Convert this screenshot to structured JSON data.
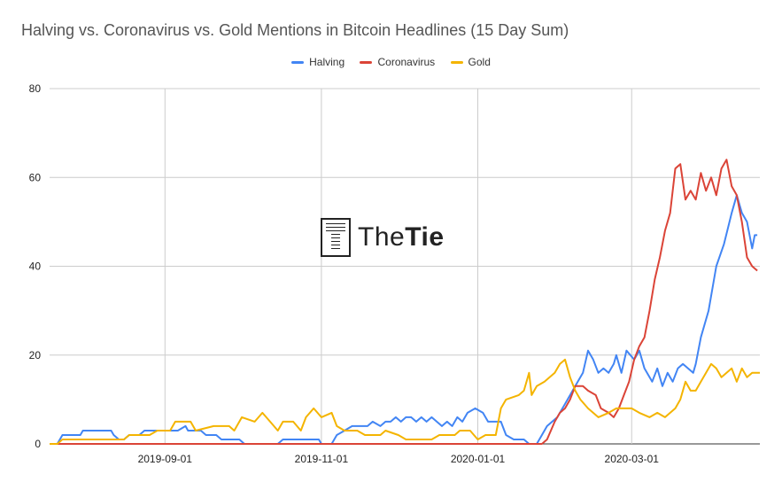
{
  "chart_data": {
    "type": "line",
    "title": "Halving vs. Coronavirus vs. Gold Mentions in Bitcoin Headlines (15 Day Sum)",
    "legend_position": "top-center",
    "grid": true,
    "ylim": [
      0,
      80
    ],
    "yticks": [
      0,
      20,
      40,
      60,
      80
    ],
    "xlim": [
      "2019-07-18",
      "2020-04-20"
    ],
    "xticks": [
      "2019-09-01",
      "2019-11-01",
      "2020-01-01",
      "2020-03-01"
    ],
    "series": [
      {
        "name": "Halving",
        "color": "#4285f4",
        "points": [
          [
            "2019-07-18",
            0
          ],
          [
            "2019-07-21",
            0
          ],
          [
            "2019-07-23",
            2
          ],
          [
            "2019-07-30",
            2
          ],
          [
            "2019-07-31",
            3
          ],
          [
            "2019-08-11",
            3
          ],
          [
            "2019-08-12",
            2
          ],
          [
            "2019-08-14",
            1
          ],
          [
            "2019-08-16",
            1
          ],
          [
            "2019-08-18",
            2
          ],
          [
            "2019-08-22",
            2
          ],
          [
            "2019-08-24",
            3
          ],
          [
            "2019-09-03",
            3
          ],
          [
            "2019-09-06",
            3
          ],
          [
            "2019-09-09",
            4
          ],
          [
            "2019-09-10",
            3
          ],
          [
            "2019-09-15",
            3
          ],
          [
            "2019-09-17",
            2
          ],
          [
            "2019-09-21",
            2
          ],
          [
            "2019-09-23",
            1
          ],
          [
            "2019-09-30",
            1
          ],
          [
            "2019-10-02",
            0
          ],
          [
            "2019-10-15",
            0
          ],
          [
            "2019-10-17",
            1
          ],
          [
            "2019-10-31",
            1
          ],
          [
            "2019-11-01",
            0
          ],
          [
            "2019-11-05",
            0
          ],
          [
            "2019-11-07",
            2
          ],
          [
            "2019-11-10",
            3
          ],
          [
            "2019-11-13",
            4
          ],
          [
            "2019-11-19",
            4
          ],
          [
            "2019-11-21",
            5
          ],
          [
            "2019-11-24",
            4
          ],
          [
            "2019-11-26",
            5
          ],
          [
            "2019-11-28",
            5
          ],
          [
            "2019-11-30",
            6
          ],
          [
            "2019-12-02",
            5
          ],
          [
            "2019-12-04",
            6
          ],
          [
            "2019-12-06",
            6
          ],
          [
            "2019-12-08",
            5
          ],
          [
            "2019-12-10",
            6
          ],
          [
            "2019-12-12",
            5
          ],
          [
            "2019-12-14",
            6
          ],
          [
            "2019-12-16",
            5
          ],
          [
            "2019-12-18",
            4
          ],
          [
            "2019-12-20",
            5
          ],
          [
            "2019-12-22",
            4
          ],
          [
            "2019-12-24",
            6
          ],
          [
            "2019-12-26",
            5
          ],
          [
            "2019-12-28",
            7
          ],
          [
            "2019-12-31",
            8
          ],
          [
            "2020-01-03",
            7
          ],
          [
            "2020-01-05",
            5
          ],
          [
            "2020-01-10",
            5
          ],
          [
            "2020-01-12",
            2
          ],
          [
            "2020-01-15",
            1
          ],
          [
            "2020-01-19",
            1
          ],
          [
            "2020-01-21",
            0
          ],
          [
            "2020-01-24",
            0
          ],
          [
            "2020-01-26",
            2
          ],
          [
            "2020-01-28",
            4
          ],
          [
            "2020-01-30",
            5
          ],
          [
            "2020-02-01",
            6
          ],
          [
            "2020-02-03",
            8
          ],
          [
            "2020-02-05",
            10
          ],
          [
            "2020-02-07",
            12
          ],
          [
            "2020-02-09",
            14
          ],
          [
            "2020-02-11",
            16
          ],
          [
            "2020-02-13",
            21
          ],
          [
            "2020-02-15",
            19
          ],
          [
            "2020-02-17",
            16
          ],
          [
            "2020-02-19",
            17
          ],
          [
            "2020-02-21",
            16
          ],
          [
            "2020-02-23",
            18
          ],
          [
            "2020-02-24",
            20
          ],
          [
            "2020-02-26",
            16
          ],
          [
            "2020-02-28",
            21
          ],
          [
            "2020-03-02",
            19
          ],
          [
            "2020-03-04",
            21
          ],
          [
            "2020-03-06",
            17
          ],
          [
            "2020-03-09",
            14
          ],
          [
            "2020-03-11",
            17
          ],
          [
            "2020-03-13",
            13
          ],
          [
            "2020-03-15",
            16
          ],
          [
            "2020-03-17",
            14
          ],
          [
            "2020-03-19",
            17
          ],
          [
            "2020-03-21",
            18
          ],
          [
            "2020-03-23",
            17
          ],
          [
            "2020-03-25",
            16
          ],
          [
            "2020-03-26",
            18
          ],
          [
            "2020-03-28",
            24
          ],
          [
            "2020-03-31",
            30
          ],
          [
            "2020-04-03",
            40
          ],
          [
            "2020-04-06",
            45
          ],
          [
            "2020-04-09",
            52
          ],
          [
            "2020-04-11",
            56
          ],
          [
            "2020-04-13",
            52
          ],
          [
            "2020-04-15",
            50
          ],
          [
            "2020-04-17",
            44
          ],
          [
            "2020-04-18",
            47
          ],
          [
            "2020-04-19",
            47
          ]
        ]
      },
      {
        "name": "Coronavirus",
        "color": "#db4437",
        "points": [
          [
            "2019-07-18",
            0
          ],
          [
            "2020-01-26",
            0
          ],
          [
            "2020-01-28",
            1
          ],
          [
            "2020-01-31",
            5
          ],
          [
            "2020-02-02",
            7
          ],
          [
            "2020-02-04",
            8
          ],
          [
            "2020-02-06",
            10
          ],
          [
            "2020-02-08",
            13
          ],
          [
            "2020-02-11",
            13
          ],
          [
            "2020-02-13",
            12
          ],
          [
            "2020-02-16",
            11
          ],
          [
            "2020-02-18",
            8
          ],
          [
            "2020-02-21",
            7
          ],
          [
            "2020-02-23",
            6
          ],
          [
            "2020-02-25",
            8
          ],
          [
            "2020-02-27",
            11
          ],
          [
            "2020-02-29",
            14
          ],
          [
            "2020-03-02",
            19
          ],
          [
            "2020-03-04",
            22
          ],
          [
            "2020-03-06",
            24
          ],
          [
            "2020-03-08",
            30
          ],
          [
            "2020-03-10",
            37
          ],
          [
            "2020-03-12",
            42
          ],
          [
            "2020-03-14",
            48
          ],
          [
            "2020-03-16",
            52
          ],
          [
            "2020-03-18",
            62
          ],
          [
            "2020-03-20",
            63
          ],
          [
            "2020-03-22",
            55
          ],
          [
            "2020-03-24",
            57
          ],
          [
            "2020-03-26",
            55
          ],
          [
            "2020-03-28",
            61
          ],
          [
            "2020-03-30",
            57
          ],
          [
            "2020-04-01",
            60
          ],
          [
            "2020-04-03",
            56
          ],
          [
            "2020-04-05",
            62
          ],
          [
            "2020-04-07",
            64
          ],
          [
            "2020-04-09",
            58
          ],
          [
            "2020-04-11",
            56
          ],
          [
            "2020-04-13",
            50
          ],
          [
            "2020-04-15",
            42
          ],
          [
            "2020-04-17",
            40
          ],
          [
            "2020-04-19",
            39
          ]
        ]
      },
      {
        "name": "Gold",
        "color": "#f4b400",
        "points": [
          [
            "2019-07-18",
            0
          ],
          [
            "2019-07-21",
            0
          ],
          [
            "2019-07-23",
            1
          ],
          [
            "2019-08-16",
            1
          ],
          [
            "2019-08-18",
            2
          ],
          [
            "2019-08-26",
            2
          ],
          [
            "2019-08-29",
            3
          ],
          [
            "2019-09-03",
            3
          ],
          [
            "2019-09-05",
            5
          ],
          [
            "2019-09-11",
            5
          ],
          [
            "2019-09-13",
            3
          ],
          [
            "2019-09-20",
            4
          ],
          [
            "2019-09-26",
            4
          ],
          [
            "2019-09-28",
            3
          ],
          [
            "2019-10-01",
            6
          ],
          [
            "2019-10-06",
            5
          ],
          [
            "2019-10-09",
            7
          ],
          [
            "2019-10-12",
            5
          ],
          [
            "2019-10-15",
            3
          ],
          [
            "2019-10-17",
            5
          ],
          [
            "2019-10-21",
            5
          ],
          [
            "2019-10-24",
            3
          ],
          [
            "2019-10-26",
            6
          ],
          [
            "2019-10-29",
            8
          ],
          [
            "2019-11-01",
            6
          ],
          [
            "2019-11-05",
            7
          ],
          [
            "2019-11-07",
            4
          ],
          [
            "2019-11-10",
            3
          ],
          [
            "2019-11-15",
            3
          ],
          [
            "2019-11-18",
            2
          ],
          [
            "2019-11-24",
            2
          ],
          [
            "2019-11-26",
            3
          ],
          [
            "2019-12-01",
            2
          ],
          [
            "2019-12-04",
            1
          ],
          [
            "2019-12-14",
            1
          ],
          [
            "2019-12-17",
            2
          ],
          [
            "2019-12-23",
            2
          ],
          [
            "2019-12-25",
            3
          ],
          [
            "2019-12-29",
            3
          ],
          [
            "2020-01-01",
            1
          ],
          [
            "2020-01-04",
            2
          ],
          [
            "2020-01-08",
            2
          ],
          [
            "2020-01-10",
            8
          ],
          [
            "2020-01-12",
            10
          ],
          [
            "2020-01-17",
            11
          ],
          [
            "2020-01-19",
            12
          ],
          [
            "2020-01-21",
            16
          ],
          [
            "2020-01-22",
            11
          ],
          [
            "2020-01-24",
            13
          ],
          [
            "2020-01-27",
            14
          ],
          [
            "2020-01-29",
            15
          ],
          [
            "2020-01-31",
            16
          ],
          [
            "2020-02-02",
            18
          ],
          [
            "2020-02-04",
            19
          ],
          [
            "2020-02-06",
            15
          ],
          [
            "2020-02-08",
            12
          ],
          [
            "2020-02-10",
            10
          ],
          [
            "2020-02-13",
            8
          ],
          [
            "2020-02-15",
            7
          ],
          [
            "2020-02-17",
            6
          ],
          [
            "2020-02-21",
            7
          ],
          [
            "2020-02-24",
            8
          ],
          [
            "2020-03-01",
            8
          ],
          [
            "2020-03-04",
            7
          ],
          [
            "2020-03-08",
            6
          ],
          [
            "2020-03-11",
            7
          ],
          [
            "2020-03-14",
            6
          ],
          [
            "2020-03-16",
            7
          ],
          [
            "2020-03-18",
            8
          ],
          [
            "2020-03-20",
            10
          ],
          [
            "2020-03-22",
            14
          ],
          [
            "2020-03-24",
            12
          ],
          [
            "2020-03-26",
            12
          ],
          [
            "2020-03-28",
            14
          ],
          [
            "2020-03-30",
            16
          ],
          [
            "2020-04-01",
            18
          ],
          [
            "2020-04-03",
            17
          ],
          [
            "2020-04-05",
            15
          ],
          [
            "2020-04-07",
            16
          ],
          [
            "2020-04-09",
            17
          ],
          [
            "2020-04-11",
            14
          ],
          [
            "2020-04-13",
            17
          ],
          [
            "2020-04-15",
            15
          ],
          [
            "2020-04-17",
            16
          ],
          [
            "2020-04-20",
            16
          ]
        ]
      }
    ]
  },
  "watermark": {
    "text_light": "The",
    "text_bold": "Tie"
  }
}
